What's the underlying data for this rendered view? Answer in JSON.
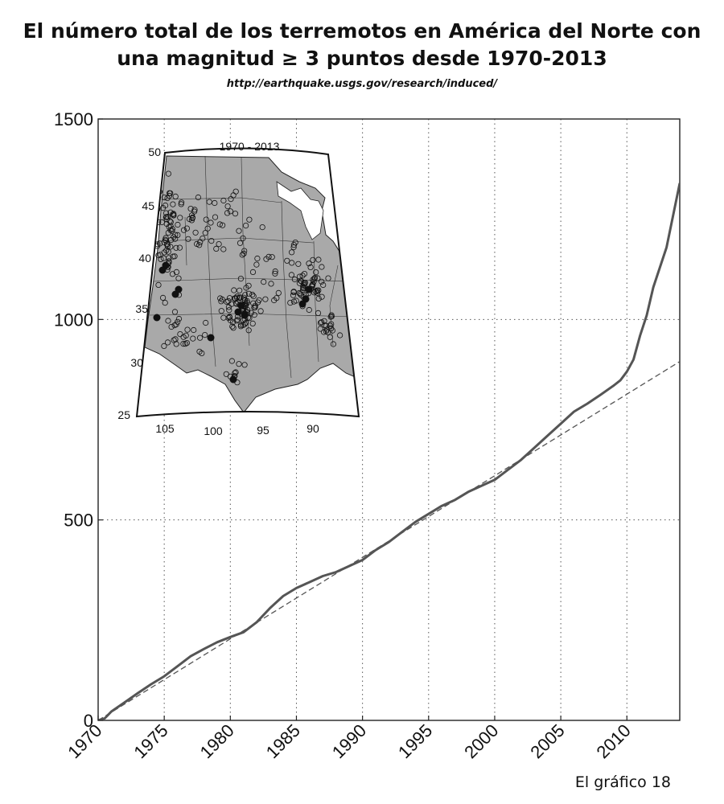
{
  "title": "El número total de los terremotos en América del Norte con una magnitud ≥ 3 puntos desde 1970-2013",
  "source": "http://earthquake.usgs.gov/research/induced/",
  "caption": "El gráfico 18",
  "chart_data": {
    "type": "line",
    "title": "El número total de los terremotos en América del Norte con una magnitud ≥ 3 puntos desde 1970-2013",
    "xlabel": "",
    "ylabel": "",
    "xlim": [
      1970,
      2014
    ],
    "ylim": [
      0,
      1500
    ],
    "x_ticks": [
      1970,
      1975,
      1980,
      1985,
      1990,
      1995,
      2000,
      2005,
      2010
    ],
    "y_ticks": [
      0,
      500,
      1000,
      1500
    ],
    "grid": true,
    "series": [
      {
        "style": "solid",
        "color": "#555555",
        "x": [
          1970,
          1970.5,
          1971,
          1972,
          1973,
          1974,
          1975,
          1976,
          1977,
          1978,
          1979,
          1980,
          1981,
          1982,
          1983,
          1984,
          1985,
          1986,
          1987,
          1988,
          1989,
          1990,
          1991,
          1992,
          1993,
          1994,
          1995,
          1996,
          1997,
          1998,
          1999,
          2000,
          2001,
          2002,
          2003,
          2004,
          2005,
          2006,
          2007,
          2008,
          2009,
          2009.5,
          2010,
          2010.5,
          2011,
          2011.5,
          2012,
          2013,
          2014
        ],
        "y": [
          0,
          5,
          22,
          45,
          68,
          90,
          110,
          135,
          160,
          178,
          195,
          208,
          220,
          245,
          280,
          310,
          330,
          345,
          360,
          370,
          385,
          400,
          425,
          445,
          470,
          495,
          515,
          535,
          550,
          570,
          585,
          600,
          625,
          650,
          680,
          710,
          740,
          770,
          790,
          812,
          835,
          848,
          870,
          900,
          960,
          1010,
          1080,
          1180,
          1340
        ]
      },
      {
        "style": "dashed",
        "color": "#555555",
        "x": [
          1970,
          2014
        ],
        "y": [
          0,
          895
        ]
      }
    ],
    "inset_map": {
      "title": "1970 - 2013",
      "lat_labels": [
        "50",
        "45",
        "40",
        "35",
        "30",
        "25"
      ],
      "lon_labels": [
        "105",
        "100",
        "95",
        "90"
      ]
    }
  }
}
